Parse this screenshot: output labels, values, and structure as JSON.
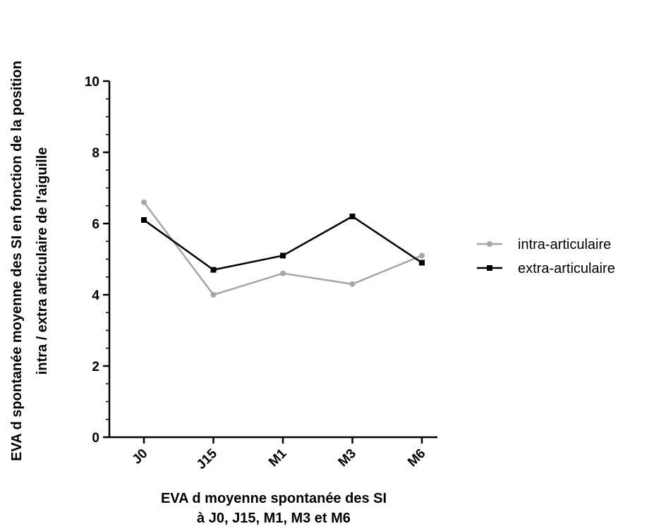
{
  "chart_data": {
    "type": "line",
    "categories": [
      "J0",
      "J15",
      "M1",
      "M3",
      "M6"
    ],
    "series": [
      {
        "name": "intra-articulaire",
        "values": [
          6.6,
          4.0,
          4.6,
          4.3,
          5.1
        ],
        "color": "#a6a6a6",
        "marker": "circle"
      },
      {
        "name": "extra-articulaire",
        "values": [
          6.1,
          4.7,
          5.1,
          6.2,
          4.9
        ],
        "color": "#000000",
        "marker": "square"
      }
    ],
    "xlabel_lines": [
      "EVA d moyenne spontanée des SI",
      "à J0, J15, M1, M3 et M6"
    ],
    "ylabel_lines": [
      "EVA d spontanée moyenne des SI en fonction de la position",
      "intra / extra articulaire de l'aiguille"
    ],
    "ylim": [
      0,
      10
    ],
    "yticks": [
      "0",
      "2",
      "4",
      "6",
      "8",
      "10"
    ],
    "grid": false,
    "legend_position": "right"
  }
}
